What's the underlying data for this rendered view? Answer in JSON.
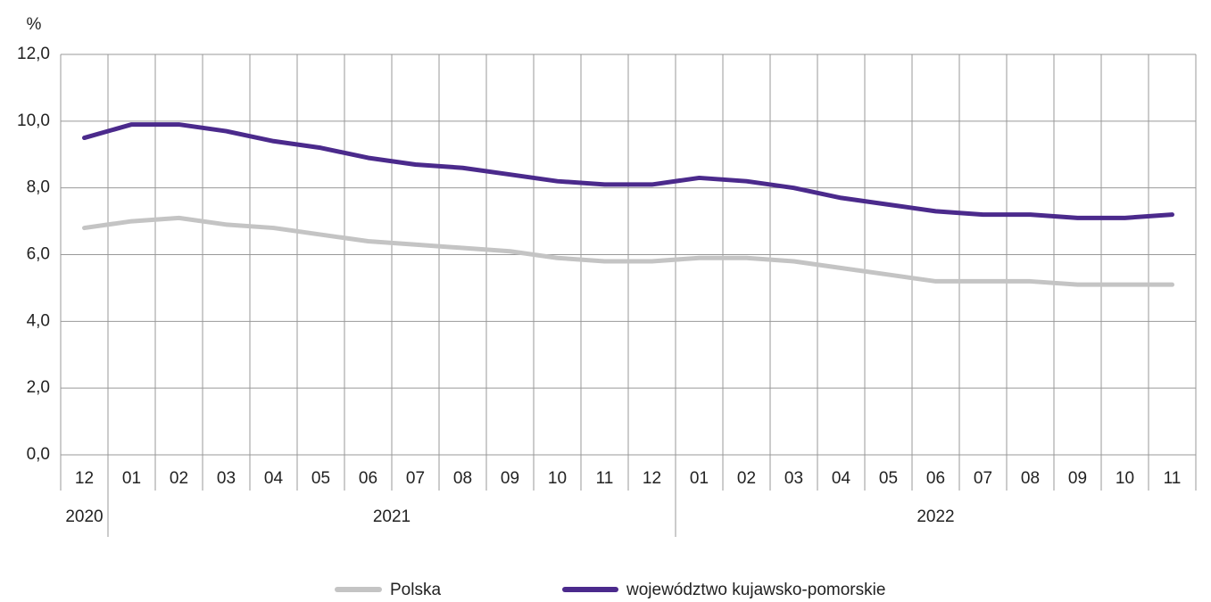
{
  "chart_data": {
    "type": "line",
    "y_label": "%",
    "categories": [
      "12",
      "01",
      "02",
      "03",
      "04",
      "05",
      "06",
      "07",
      "08",
      "09",
      "10",
      "11",
      "12",
      "01",
      "02",
      "03",
      "04",
      "05",
      "06",
      "07",
      "08",
      "09",
      "10",
      "11"
    ],
    "year_labels": [
      "2020",
      "2021",
      "2022"
    ],
    "series": [
      {
        "name": "Polska",
        "color": "#c4c4c4",
        "values": [
          6.8,
          7.0,
          7.1,
          6.9,
          6.8,
          6.6,
          6.4,
          6.3,
          6.2,
          6.1,
          5.9,
          5.8,
          5.8,
          5.9,
          5.9,
          5.8,
          5.6,
          5.4,
          5.2,
          5.2,
          5.2,
          5.1,
          5.1,
          5.1
        ]
      },
      {
        "name": "województwo kujawsko-pomorskie",
        "color": "#4b2a8c",
        "values": [
          9.5,
          9.9,
          9.9,
          9.7,
          9.4,
          9.2,
          8.9,
          8.7,
          8.6,
          8.4,
          8.2,
          8.1,
          8.1,
          8.3,
          8.2,
          8.0,
          7.7,
          7.5,
          7.3,
          7.2,
          7.2,
          7.1,
          7.1,
          7.2
        ]
      }
    ],
    "ylim": [
      0,
      12
    ],
    "yticks": [
      {
        "value": 0,
        "label": "0,0"
      },
      {
        "value": 2,
        "label": "2,0"
      },
      {
        "value": 4,
        "label": "4,0"
      },
      {
        "value": 6,
        "label": "6,0"
      },
      {
        "value": 8,
        "label": "8,0"
      },
      {
        "value": 10,
        "label": "10,0"
      },
      {
        "value": 12,
        "label": "12,0"
      }
    ],
    "grid": true,
    "legend": "bottom"
  }
}
